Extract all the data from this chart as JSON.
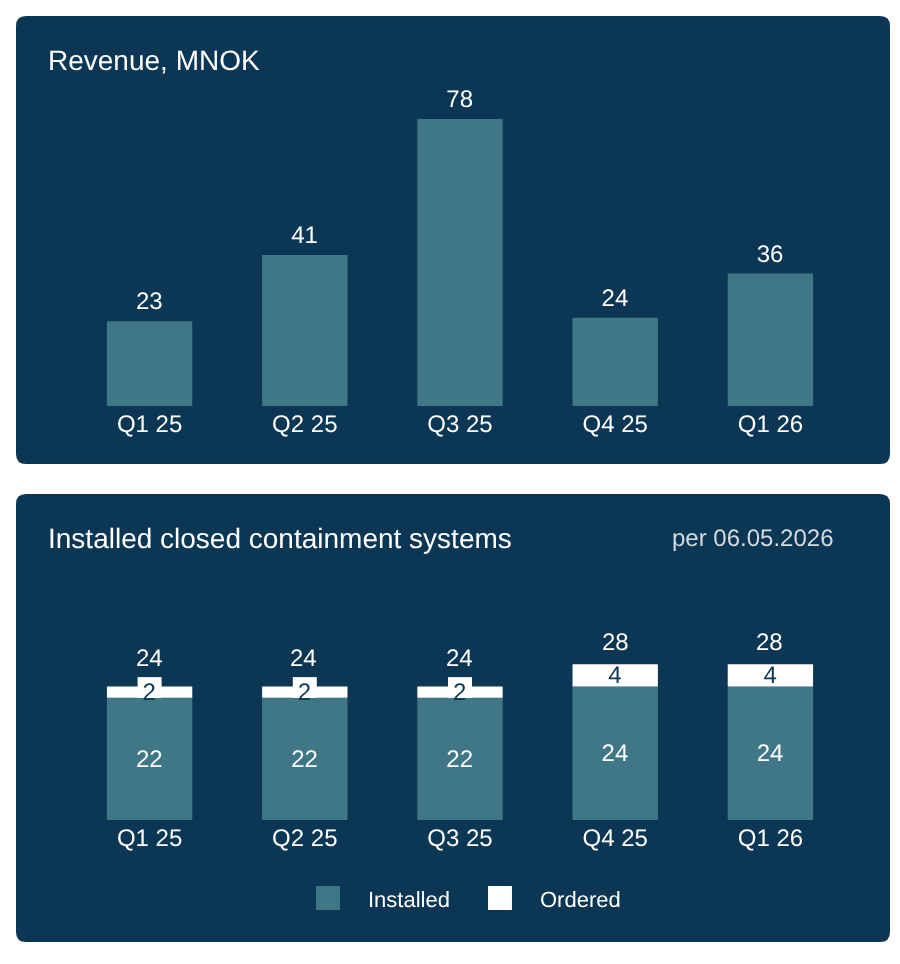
{
  "chart_data": [
    {
      "type": "bar",
      "title": "Revenue, MNOK",
      "categories": [
        "Q1 25",
        "Q2 25",
        "Q3 25",
        "Q4 25",
        "Q1 26"
      ],
      "values": [
        23,
        41,
        78,
        24,
        36
      ],
      "color": "#3f7786",
      "data_labels": true,
      "tick_labels": "x"
    },
    {
      "type": "bar",
      "stacked": true,
      "title": "Installed closed containment systems",
      "subtitle": "per 06.05.2026",
      "categories": [
        "Q1 25",
        "Q2 25",
        "Q3 25",
        "Q4 25",
        "Q1 26"
      ],
      "series": [
        {
          "name": "Installed",
          "color": "#3f7786",
          "values": [
            22,
            22,
            22,
            24,
            24
          ]
        },
        {
          "name": "Ordered",
          "color": "#ffffff",
          "values": [
            2,
            2,
            2,
            4,
            4
          ]
        }
      ],
      "data_labels": true,
      "totals": [
        "24",
        "24",
        "24",
        "28",
        "28"
      ],
      "legend": "bottom",
      "tick_labels": "x"
    }
  ]
}
